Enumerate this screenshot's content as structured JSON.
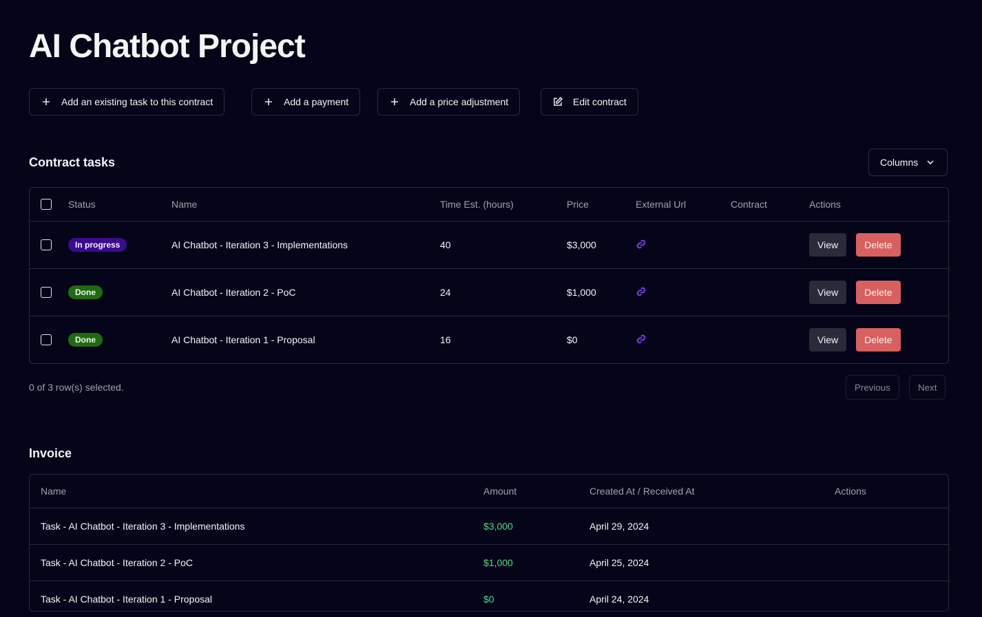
{
  "header": {
    "title": "AI Chatbot Project"
  },
  "actions": [
    "Add an existing task to this contract",
    "Add a payment",
    "Add a price adjustment",
    "Edit contract"
  ],
  "tasks": {
    "title": "Contract tasks",
    "columns_button": "Columns",
    "headers": [
      "Status",
      "Name",
      "Time Est. (hours)",
      "Price",
      "External Url",
      "Contract",
      "Actions"
    ],
    "rows": [
      {
        "status": "In progress",
        "name": "AI Chatbot - Iteration 3 - Implementations",
        "time": 40,
        "price": "$3,000"
      },
      {
        "status": "Done",
        "name": "AI Chatbot - Iteration 2 - PoC",
        "time": 24,
        "price": "$1,000"
      },
      {
        "status": "Done",
        "name": "AI Chatbot - Iteration 1 - Proposal",
        "time": 16,
        "price": "$0"
      }
    ],
    "row_actions": [
      "View",
      "Delete"
    ],
    "selection": "0 of 3 row(s) selected.",
    "pagination": [
      "Previous",
      "Next"
    ]
  },
  "invoice": {
    "title": "Invoice",
    "headers": [
      "Name",
      "Amount",
      "Created At / Received At",
      "Actions"
    ],
    "rows": [
      {
        "name": "Task - AI Chatbot - Iteration 3 - Implementations",
        "amount": "$3,000",
        "date": "April 29, 2024"
      },
      {
        "name": "Task - AI Chatbot - Iteration 2 - PoC",
        "amount": "$1,000",
        "date": "April 25, 2024"
      },
      {
        "name": "Task - AI Chatbot - Iteration 1 - Proposal",
        "amount": "$0",
        "date": "April 24, 2024"
      }
    ]
  }
}
